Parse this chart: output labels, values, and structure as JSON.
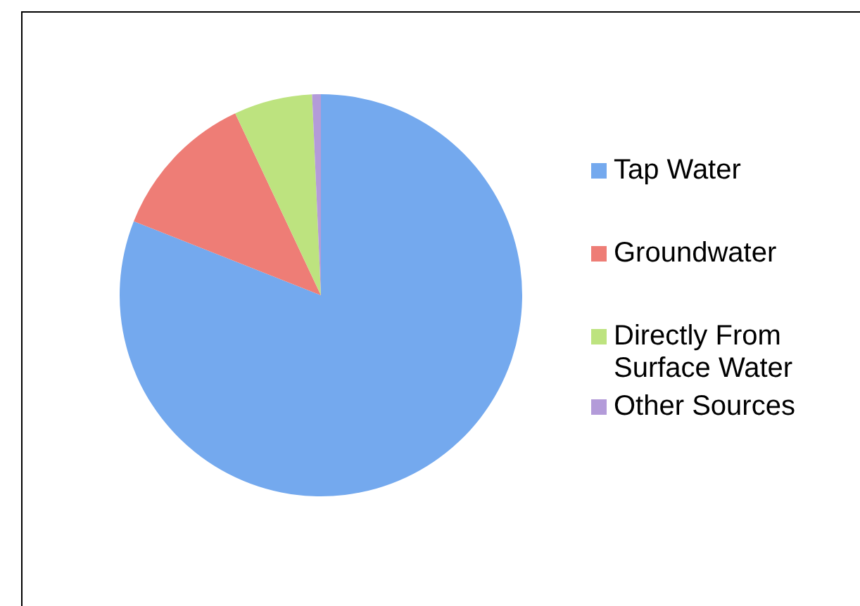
{
  "chart_data": {
    "type": "pie",
    "categories": [
      "Tap Water",
      "Groundwater",
      "Directly From Surface Water",
      "Other Sources"
    ],
    "values": [
      81,
      12,
      6.3,
      0.7
    ],
    "colors": [
      "#74a9ee",
      "#ee7d76",
      "#bde37f",
      "#b39bd9"
    ],
    "legend": "right"
  }
}
